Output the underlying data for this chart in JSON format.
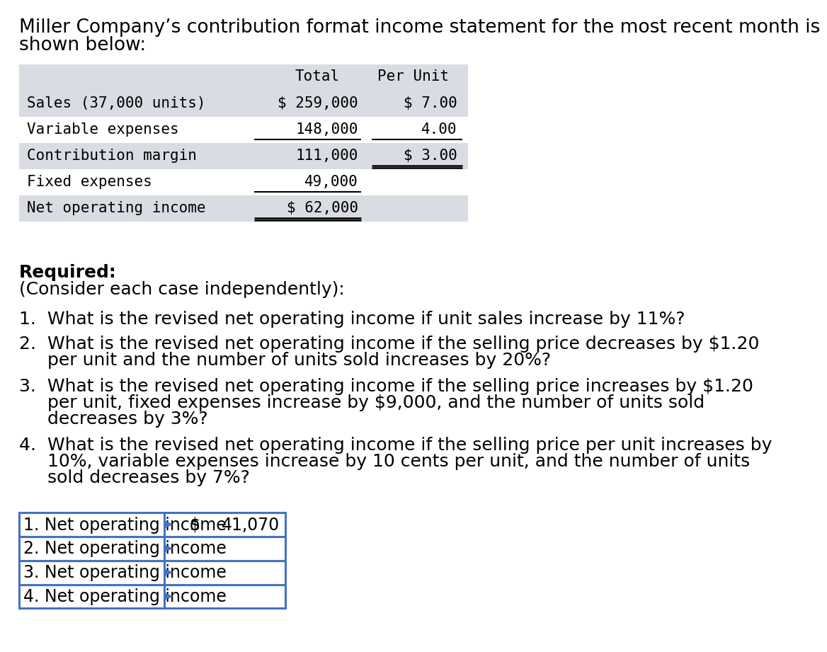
{
  "intro_text_line1": "Miller Company’s contribution format income statement for the most recent month is",
  "intro_text_line2": "shown below:",
  "table_header_col1": "Total",
  "table_header_col2": "Per Unit",
  "table_rows": [
    [
      "Sales (37,000 units)",
      "$ 259,000",
      "$ 7.00"
    ],
    [
      "Variable expenses",
      "148,000",
      "4.00"
    ],
    [
      "Contribution margin",
      "111,000",
      "$ 3.00"
    ],
    [
      "Fixed expenses",
      "49,000",
      ""
    ],
    [
      "Net operating income",
      "$ 62,000",
      ""
    ]
  ],
  "header_bg": "#d9dce3",
  "row_bg_indices": [
    0,
    2,
    4
  ],
  "required_bold": "Required:",
  "consider_text": "(Consider each case independently):",
  "q1": "1.  What is the revised net operating income if unit sales increase by 11%?",
  "q2a": "2.  What is the revised net operating income if the selling price decreases by $1.20",
  "q2b": "     per unit and the number of units sold increases by 20%?",
  "q3a": "3.  What is the revised net operating income if the selling price increases by $1.20",
  "q3b": "     per unit, fixed expenses increase by $9,000, and the number of units sold",
  "q3c": "     decreases by 3%?",
  "q4a": "4.  What is the revised net operating income if the selling price per unit increases by",
  "q4b": "     10%, variable expenses increase by 10 cents per unit, and the number of units",
  "q4c": "     sold decreases by 7%?",
  "answer_labels": [
    "1. Net operating income",
    "2. Net operating income",
    "3. Net operating income",
    "4. Net operating income"
  ],
  "answer_dollar": "$",
  "answer_value": "41,070",
  "answer_table_border_color": "#4472c4",
  "bg_color": "#ffffff",
  "text_color": "#000000",
  "mono_font": "DejaVu Sans Mono",
  "sans_font": "DejaVu Sans",
  "intro_fontsize": 19,
  "table_fontsize": 15,
  "required_fontsize": 18,
  "question_fontsize": 18,
  "answer_fontsize": 17
}
